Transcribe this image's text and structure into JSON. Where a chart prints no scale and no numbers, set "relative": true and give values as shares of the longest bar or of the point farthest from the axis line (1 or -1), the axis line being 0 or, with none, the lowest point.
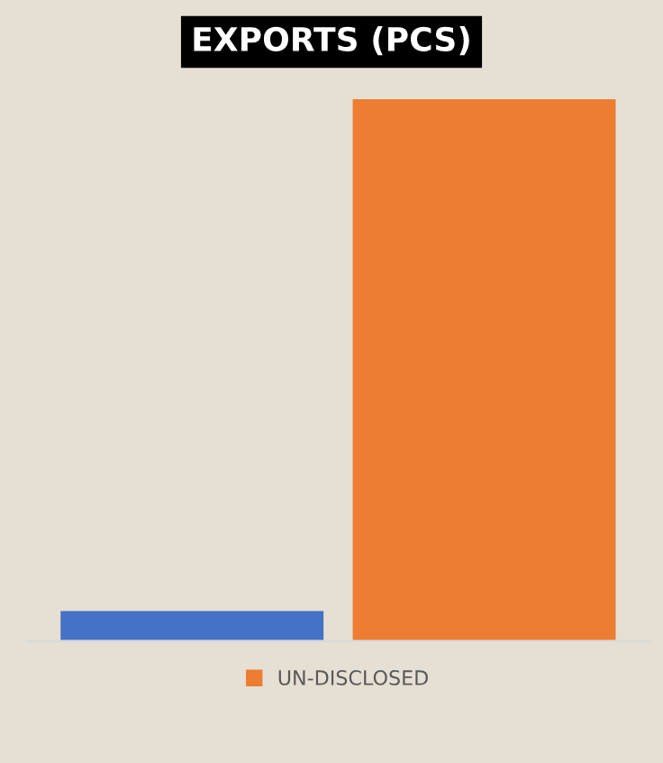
{
  "chart_data": {
    "type": "bar",
    "title": "EXPORTS (PCS)",
    "relative": true,
    "categories": [
      null
    ],
    "series": [
      {
        "color": "#4472c4",
        "values": [
          0.055
        ]
      },
      {
        "name": "UN-DISCLOSED",
        "color": "#ed7d31",
        "values": [
          1
        ]
      }
    ],
    "legend": "bottom",
    "grid": false
  }
}
